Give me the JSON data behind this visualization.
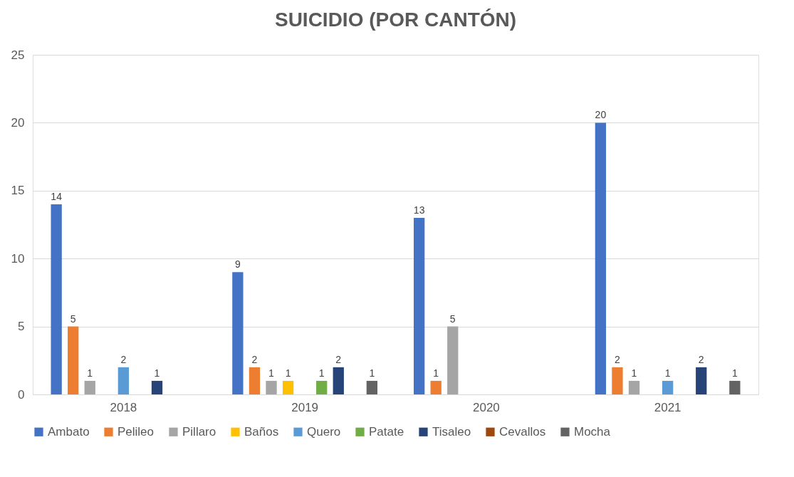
{
  "chart_data": {
    "type": "bar",
    "title": "SUICIDIO (POR CANTÓN)",
    "categories": [
      "2018",
      "2019",
      "2020",
      "2021"
    ],
    "series": [
      {
        "name": "Ambato",
        "color": "#4472c4",
        "values": [
          14,
          9,
          13,
          20
        ]
      },
      {
        "name": "Pelileo",
        "color": "#ed7d31",
        "values": [
          5,
          2,
          1,
          2
        ]
      },
      {
        "name": "Pillaro",
        "color": "#a5a5a5",
        "values": [
          1,
          1,
          5,
          1
        ]
      },
      {
        "name": "Baños",
        "color": "#ffc000",
        "values": [
          null,
          1,
          null,
          null
        ]
      },
      {
        "name": "Quero",
        "color": "#5b9bd5",
        "values": [
          2,
          null,
          null,
          1
        ]
      },
      {
        "name": "Patate",
        "color": "#70ad47",
        "values": [
          null,
          1,
          null,
          null
        ]
      },
      {
        "name": "Tisaleo",
        "color": "#264478",
        "values": [
          1,
          2,
          null,
          2
        ]
      },
      {
        "name": "Cevallos",
        "color": "#9e480e",
        "values": [
          null,
          null,
          null,
          null
        ]
      },
      {
        "name": "Mocha",
        "color": "#636363",
        "values": [
          null,
          1,
          null,
          1
        ]
      }
    ],
    "ylim": [
      0,
      25
    ],
    "yticks": [
      0,
      5,
      10,
      15,
      20,
      25
    ],
    "grid": "y",
    "legend": "bottom",
    "data_labels": true
  }
}
